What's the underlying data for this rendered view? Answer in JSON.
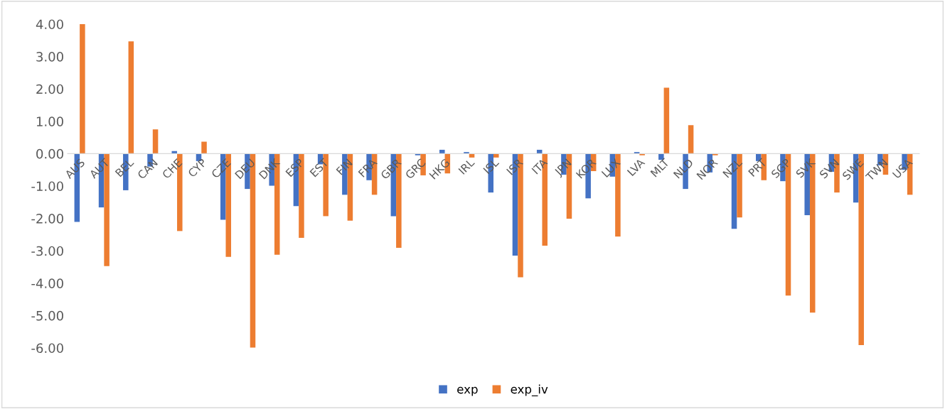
{
  "chart_data": {
    "type": "bar",
    "categories": [
      "AUS",
      "AUT",
      "BEL",
      "CAN",
      "CHE",
      "CYP",
      "CZE",
      "DEU",
      "DNK",
      "ESP",
      "EST",
      "FIN",
      "FRA",
      "GBR",
      "GRC",
      "HKG",
      "IRL",
      "ISL",
      "ISR",
      "ITA",
      "JPN",
      "KOR",
      "LUX",
      "LVA",
      "MLT",
      "NLD",
      "NOR",
      "NZL",
      "PRT",
      "SGP",
      "SVK",
      "SVN",
      "SWE",
      "TWN",
      "USA"
    ],
    "series": [
      {
        "name": "exp",
        "color": "#4472c4",
        "values": [
          -2.11,
          -1.66,
          -1.13,
          -0.4,
          0.08,
          -0.23,
          -2.04,
          -1.09,
          -0.99,
          -1.62,
          -0.33,
          -1.27,
          -0.82,
          -1.93,
          -0.05,
          0.12,
          0.05,
          -1.2,
          -3.15,
          0.12,
          -0.65,
          -1.38,
          -0.71,
          0.05,
          -0.19,
          -1.09,
          -0.58,
          -2.32,
          -0.23,
          -0.85,
          -1.9,
          -0.56,
          -1.51,
          -0.36,
          -0.5
        ]
      },
      {
        "name": "exp_iv",
        "color": "#ed7d31",
        "values": [
          4.0,
          -3.47,
          3.47,
          0.75,
          -2.39,
          0.37,
          -3.19,
          -5.99,
          -3.12,
          -2.6,
          -1.93,
          -2.07,
          -1.27,
          -2.91,
          -0.67,
          -0.61,
          -0.12,
          -0.12,
          -3.82,
          -2.84,
          -2.01,
          -0.54,
          -2.56,
          -0.05,
          2.04,
          0.88,
          -0.05,
          -1.97,
          -0.82,
          -4.38,
          -4.91,
          -1.2,
          -5.91,
          -0.65,
          -1.27
        ]
      }
    ],
    "ylim": [
      -6,
      4
    ],
    "yticks": [
      {
        "value": 4,
        "label": "4.00"
      },
      {
        "value": 3,
        "label": "3.00"
      },
      {
        "value": 2,
        "label": "2.00"
      },
      {
        "value": 1,
        "label": "1.00"
      },
      {
        "value": 0,
        "label": "0.00"
      },
      {
        "value": -1,
        "label": "-1.00"
      },
      {
        "value": -2,
        "label": "-2.00"
      },
      {
        "value": -3,
        "label": "-3.00"
      },
      {
        "value": -4,
        "label": "-4.00"
      },
      {
        "value": -5,
        "label": "-5.00"
      },
      {
        "value": -6,
        "label": "-6.00"
      }
    ],
    "grid": false,
    "legend": "bottom"
  }
}
